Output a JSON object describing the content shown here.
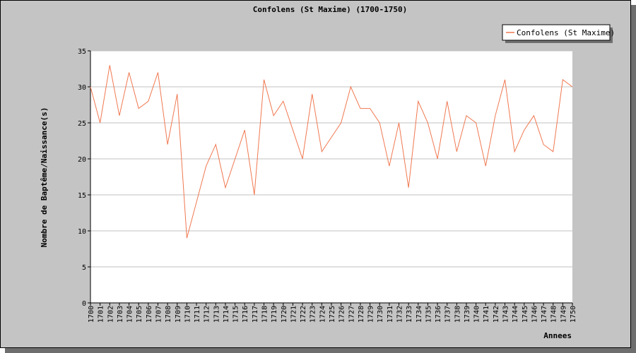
{
  "chart_data": {
    "type": "line",
    "title": "Confolens (St Maxime) (1700-1750)",
    "xlabel": "Annees",
    "ylabel": "Nombre de Baptême/Naissance(s)",
    "ylim": [
      0,
      35
    ],
    "yticks": [
      0,
      5,
      10,
      15,
      20,
      25,
      30,
      35
    ],
    "grid": true,
    "legend_position": "top-right",
    "line_color": "#f07850",
    "categories": [
      "1700",
      "1701",
      "1702",
      "1703",
      "1704",
      "1705",
      "1706",
      "1707",
      "1708",
      "1709",
      "1710",
      "1711",
      "1712",
      "1713",
      "1714",
      "1715",
      "1716",
      "1717",
      "1718",
      "1719",
      "1720",
      "1721",
      "1722",
      "1723",
      "1724",
      "1725",
      "1726",
      "1727",
      "1728",
      "1729",
      "1730",
      "1731",
      "1732",
      "1733",
      "1734",
      "1735",
      "1736",
      "1737",
      "1738",
      "1739",
      "1740",
      "1741",
      "1742",
      "1743",
      "1744",
      "1745",
      "1746",
      "1747",
      "1748",
      "1749",
      "1750"
    ],
    "series": [
      {
        "name": "Confolens (St Maxime)",
        "values": [
          30,
          25,
          33,
          26,
          32,
          27,
          28,
          32,
          22,
          29,
          9,
          14,
          19,
          22,
          16,
          20,
          24,
          15,
          31,
          26,
          28,
          24,
          20,
          29,
          21,
          23,
          25,
          30,
          27,
          27,
          25,
          19,
          25,
          16,
          28,
          25,
          20,
          28,
          21,
          26,
          25,
          19,
          26,
          31,
          21,
          24,
          26,
          22,
          21,
          31,
          30
        ]
      }
    ]
  }
}
